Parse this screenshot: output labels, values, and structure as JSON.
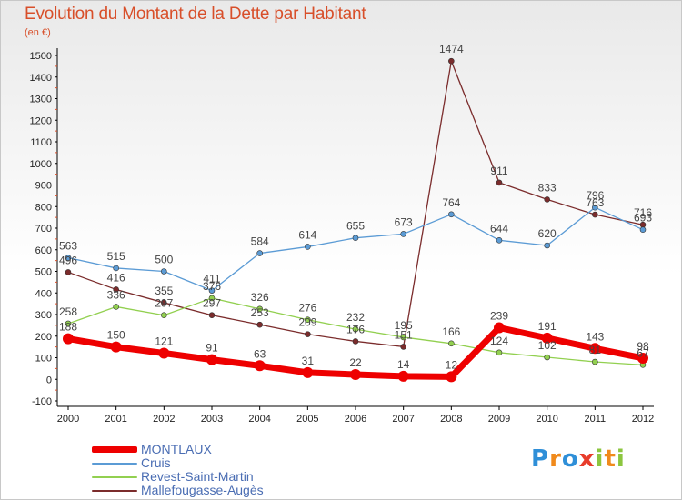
{
  "title": "Evolution du Montant de la Dette par Habitant",
  "subtitle": "(en €)",
  "logo": "Proxiti",
  "chart_data": {
    "type": "line",
    "x": [
      "2000",
      "2001",
      "2002",
      "2003",
      "2004",
      "2005",
      "2006",
      "2007",
      "2008",
      "2009",
      "2010",
      "2011",
      "2012"
    ],
    "ylim": [
      -100,
      1500
    ],
    "yticks": [
      -100,
      0,
      100,
      200,
      300,
      400,
      500,
      600,
      700,
      800,
      900,
      1000,
      1100,
      1200,
      1300,
      1400,
      1500
    ],
    "grid": false,
    "legend_position": "bottom-left",
    "series": [
      {
        "name": "MONTLAUX",
        "color": "#ee0000",
        "values": [
          188,
          150,
          121,
          91,
          63,
          31,
          22,
          14,
          12,
          239,
          191,
          143,
          98
        ],
        "labels": [
          "188",
          "150",
          "121",
          "91",
          "63",
          "31",
          "22",
          "14",
          "12",
          "239",
          "191",
          "143",
          "98"
        ]
      },
      {
        "name": "Cruis",
        "color": "#5b9bd5",
        "values": [
          563,
          515,
          500,
          411,
          584,
          614,
          655,
          673,
          764,
          644,
          620,
          796,
          693
        ],
        "labels": [
          "563",
          "515",
          "500",
          "411",
          "584",
          "614",
          "655",
          "673",
          "764",
          "644",
          "620",
          "796",
          "693"
        ]
      },
      {
        "name": "Revest-Saint-Martin",
        "color": "#92d050",
        "values": [
          258,
          336,
          297,
          376,
          326,
          276,
          232,
          195,
          166,
          124,
          102,
          81,
          67
        ],
        "labels": [
          "258",
          "336",
          "297",
          "376",
          "326",
          "276",
          "232",
          "195",
          "166",
          "124",
          "102",
          "81",
          "67"
        ]
      },
      {
        "name": "Mallefougasse-Augès",
        "color": "#7b2c2c",
        "values": [
          496,
          416,
          355,
          297,
          253,
          209,
          176,
          151,
          1474,
          911,
          833,
          763,
          716
        ],
        "labels": [
          "496",
          "416",
          "355",
          "297",
          "253",
          "209",
          "176",
          "151",
          "1474",
          "911",
          "833",
          "763",
          "716"
        ]
      }
    ]
  }
}
